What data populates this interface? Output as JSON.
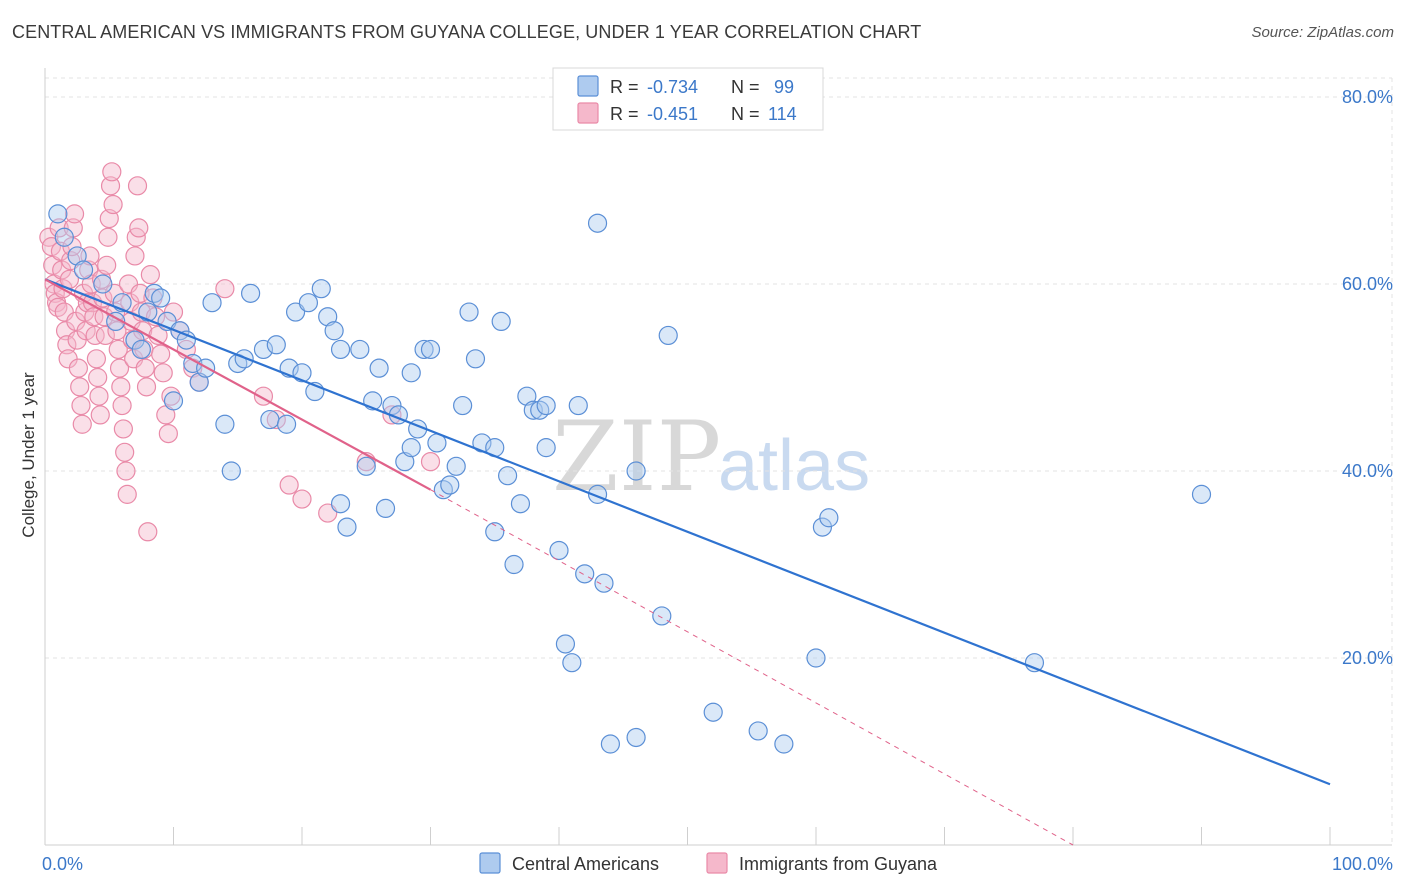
{
  "title": "CENTRAL AMERICAN VS IMMIGRANTS FROM GUYANA COLLEGE, UNDER 1 YEAR CORRELATION CHART",
  "source": "Source: ZipAtlas.com",
  "watermark": {
    "zip": "ZIP",
    "atlas": "atlas"
  },
  "colors": {
    "blue_fill": "#aecbef",
    "blue_stroke": "#5b8fd6",
    "blue_line": "#2f73d0",
    "pink_fill": "#f5b8cb",
    "pink_stroke": "#e98aa8",
    "pink_line": "#e0628a",
    "grid": "#e3e3e3",
    "tick_label": "#3b78c9"
  },
  "legend": {
    "rows": [
      {
        "r_label": "R =",
        "r_value": "-0.734",
        "n_label": "N =",
        "n_value": "99"
      },
      {
        "r_label": "R =",
        "r_value": "-0.451",
        "n_label": "N =",
        "n_value": "114"
      }
    ]
  },
  "chart_data": {
    "type": "scatter",
    "title": "CENTRAL AMERICAN VS IMMIGRANTS FROM GUYANA COLLEGE, UNDER 1 YEAR CORRELATION CHART",
    "xlabel": "",
    "ylabel": "College, Under 1 year",
    "xlim": [
      0,
      100
    ],
    "ylim": [
      0,
      80
    ],
    "x_tick_labels": [
      "0.0%",
      "100.0%"
    ],
    "y_ticks": [
      20,
      40,
      60,
      80
    ],
    "y_tick_labels": [
      "20.0%",
      "40.0%",
      "60.0%",
      "80.0%"
    ],
    "grid": true,
    "legend_position": "top-center",
    "series": [
      {
        "name": "Central Americans",
        "r": -0.734,
        "n": 99,
        "trend": {
          "x0": 0,
          "y0": 60.5,
          "x1": 100,
          "y1": 6.5
        },
        "points": [
          [
            1,
            67.5
          ],
          [
            1.5,
            65
          ],
          [
            2.5,
            63
          ],
          [
            3,
            61.5
          ],
          [
            4.5,
            60
          ],
          [
            5.5,
            56
          ],
          [
            6,
            58
          ],
          [
            7,
            54
          ],
          [
            7.5,
            53
          ],
          [
            8,
            57
          ],
          [
            8.5,
            59
          ],
          [
            9,
            58.5
          ],
          [
            9.5,
            56
          ],
          [
            10,
            47.5
          ],
          [
            10.5,
            55
          ],
          [
            11,
            54
          ],
          [
            11.5,
            51.5
          ],
          [
            12,
            49.5
          ],
          [
            12.5,
            51
          ],
          [
            13,
            58
          ],
          [
            14,
            45
          ],
          [
            14.5,
            40
          ],
          [
            15,
            51.5
          ],
          [
            15.5,
            52
          ],
          [
            16,
            59
          ],
          [
            17,
            53
          ],
          [
            17.5,
            45.5
          ],
          [
            18,
            53.5
          ],
          [
            19,
            51
          ],
          [
            20,
            50.5
          ],
          [
            18.8,
            45
          ],
          [
            19.5,
            57
          ],
          [
            20.5,
            58
          ],
          [
            21,
            48.5
          ],
          [
            21.5,
            59.5
          ],
          [
            22,
            56.5
          ],
          [
            22.5,
            55
          ],
          [
            23,
            53
          ],
          [
            23,
            36.5
          ],
          [
            23.5,
            34
          ],
          [
            24.5,
            53
          ],
          [
            25,
            40.5
          ],
          [
            25.5,
            47.5
          ],
          [
            26,
            51
          ],
          [
            26.5,
            36
          ],
          [
            27,
            47
          ],
          [
            27.5,
            46
          ],
          [
            28,
            41
          ],
          [
            28.5,
            50.5
          ],
          [
            28.5,
            42.5
          ],
          [
            29,
            44.5
          ],
          [
            29.5,
            53
          ],
          [
            30,
            53
          ],
          [
            30.5,
            43
          ],
          [
            31,
            38
          ],
          [
            31.5,
            38.5
          ],
          [
            32,
            40.5
          ],
          [
            32.5,
            47
          ],
          [
            33,
            57
          ],
          [
            33.5,
            52
          ],
          [
            34,
            43
          ],
          [
            35,
            42.5
          ],
          [
            35,
            33.5
          ],
          [
            35.5,
            56
          ],
          [
            36,
            39.5
          ],
          [
            36.5,
            30
          ],
          [
            37,
            36.5
          ],
          [
            37.5,
            48
          ],
          [
            38,
            46.5
          ],
          [
            38.5,
            46.5
          ],
          [
            39,
            47
          ],
          [
            39,
            42.5
          ],
          [
            40,
            31.5
          ],
          [
            40.5,
            21.5
          ],
          [
            41,
            19.5
          ],
          [
            41.5,
            47
          ],
          [
            42,
            29
          ],
          [
            43,
            66.5
          ],
          [
            43,
            37.5
          ],
          [
            43.5,
            28
          ],
          [
            44,
            10.8
          ],
          [
            46,
            40
          ],
          [
            46,
            11.5
          ],
          [
            48,
            24.5
          ],
          [
            48.5,
            54.5
          ],
          [
            52,
            14.2
          ],
          [
            55.5,
            12.2
          ],
          [
            57.5,
            10.8
          ],
          [
            60,
            20
          ],
          [
            60.5,
            34
          ],
          [
            61,
            35
          ],
          [
            77,
            19.5
          ],
          [
            90,
            37.5
          ]
        ]
      },
      {
        "name": "Immigrants from Guyana",
        "r": -0.451,
        "n": 114,
        "trend": {
          "x0": 0,
          "y0": 60.5,
          "x1": 30,
          "y1": 38
        },
        "trend_extension": {
          "x0": 30,
          "y0": 38,
          "x1": 80,
          "y1": 0
        },
        "points": [
          [
            0.3,
            65
          ],
          [
            0.5,
            64
          ],
          [
            0.6,
            62
          ],
          [
            0.7,
            60
          ],
          [
            0.8,
            59
          ],
          [
            0.9,
            58
          ],
          [
            1,
            57.5
          ],
          [
            1.1,
            66
          ],
          [
            1.2,
            63.5
          ],
          [
            1.3,
            61.5
          ],
          [
            1.4,
            59.5
          ],
          [
            1.5,
            57
          ],
          [
            1.6,
            55
          ],
          [
            1.7,
            53.5
          ],
          [
            1.8,
            52
          ],
          [
            1.9,
            60.5
          ],
          [
            2,
            62.5
          ],
          [
            2.1,
            64
          ],
          [
            2.2,
            66
          ],
          [
            2.3,
            67.5
          ],
          [
            2.4,
            56
          ],
          [
            2.5,
            54
          ],
          [
            2.6,
            51
          ],
          [
            2.7,
            49
          ],
          [
            2.8,
            47
          ],
          [
            2.9,
            45
          ],
          [
            3,
            59
          ],
          [
            3.1,
            57
          ],
          [
            3.2,
            55
          ],
          [
            3.3,
            58
          ],
          [
            3.4,
            61.5
          ],
          [
            3.5,
            63
          ],
          [
            3.6,
            60
          ],
          [
            3.7,
            58
          ],
          [
            3.8,
            56.5
          ],
          [
            3.9,
            54.5
          ],
          [
            4,
            52
          ],
          [
            4.1,
            50
          ],
          [
            4.2,
            48
          ],
          [
            4.3,
            46
          ],
          [
            4.4,
            60.5
          ],
          [
            4.5,
            58.5
          ],
          [
            4.6,
            56.5
          ],
          [
            4.7,
            54.5
          ],
          [
            4.8,
            62
          ],
          [
            4.9,
            65
          ],
          [
            5,
            67
          ],
          [
            5.1,
            70.5
          ],
          [
            5.2,
            72
          ],
          [
            5.3,
            68.5
          ],
          [
            5.4,
            59
          ],
          [
            5.5,
            57
          ],
          [
            5.6,
            55
          ],
          [
            5.7,
            53
          ],
          [
            5.8,
            51
          ],
          [
            5.9,
            49
          ],
          [
            6,
            47
          ],
          [
            6.1,
            44.5
          ],
          [
            6.2,
            42
          ],
          [
            6.3,
            40
          ],
          [
            6.4,
            37.5
          ],
          [
            6.5,
            60
          ],
          [
            6.6,
            58
          ],
          [
            6.7,
            56
          ],
          [
            6.8,
            54
          ],
          [
            6.9,
            52
          ],
          [
            7,
            63
          ],
          [
            7.1,
            65
          ],
          [
            7.2,
            70.5
          ],
          [
            7.3,
            66
          ],
          [
            7.4,
            59
          ],
          [
            7.5,
            57
          ],
          [
            7.6,
            55
          ],
          [
            7.7,
            53
          ],
          [
            7.8,
            51
          ],
          [
            7.9,
            49
          ],
          [
            8,
            33.5
          ],
          [
            8.2,
            61
          ],
          [
            8.4,
            58.5
          ],
          [
            8.6,
            56.5
          ],
          [
            8.8,
            54.5
          ],
          [
            9,
            52.5
          ],
          [
            9.2,
            50.5
          ],
          [
            9.4,
            46
          ],
          [
            9.6,
            44
          ],
          [
            9.8,
            48
          ],
          [
            10,
            57
          ],
          [
            10.5,
            55
          ],
          [
            11,
            53
          ],
          [
            11.5,
            51
          ],
          [
            12,
            49.5
          ],
          [
            14,
            59.5
          ],
          [
            17,
            48
          ],
          [
            18,
            45.5
          ],
          [
            19,
            38.5
          ],
          [
            20,
            37
          ],
          [
            22,
            35.5
          ],
          [
            25,
            41
          ],
          [
            27,
            46
          ],
          [
            30,
            41
          ]
        ]
      }
    ]
  }
}
